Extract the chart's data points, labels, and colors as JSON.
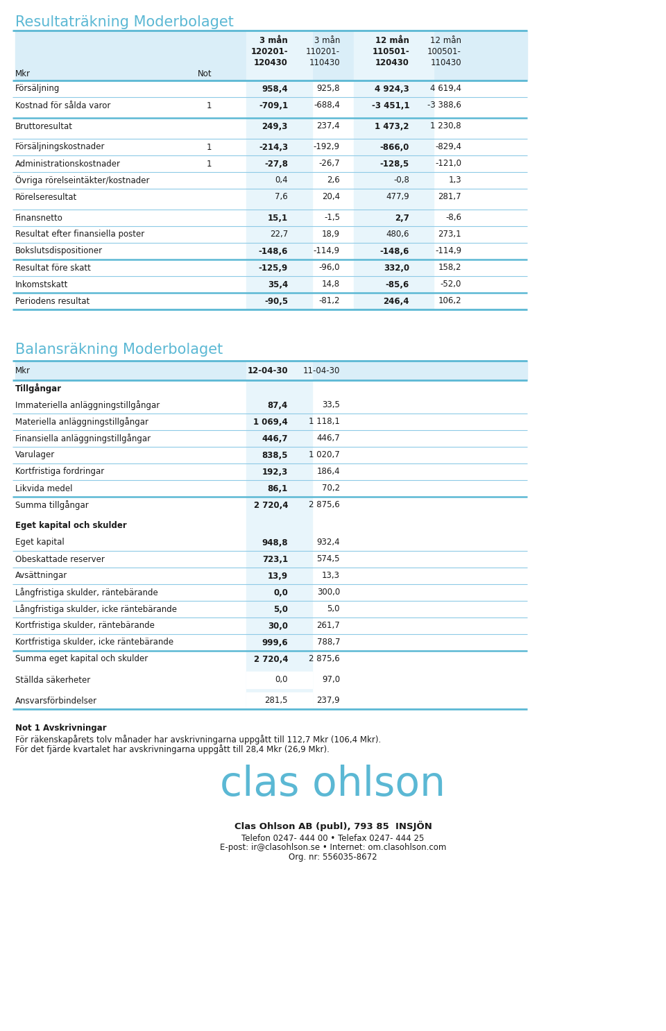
{
  "title1": "Resultaträkning Moderbolaget",
  "title2": "Balansräkning Moderbolaget",
  "title_color": "#5bb8d4",
  "bg_color": "#ffffff",
  "header_bg": "#daeef8",
  "col_bg": "#e8f5fb",
  "line_color": "#8ecae6",
  "thick_line_color": "#5bb8d4",
  "text_color": "#1a1a1a",
  "col1_header": [
    "3 mån",
    "120201-",
    "120430"
  ],
  "col2_header": [
    "3 mån",
    "110201-",
    "110430"
  ],
  "col3_header": [
    "12 mån",
    "110501-",
    "120430"
  ],
  "col4_header": [
    "12 mån",
    "100501-",
    "110430"
  ],
  "mkr_label": "Mkr",
  "not_label": "Not",
  "resultat_rows": [
    {
      "label": "Försäljning",
      "not": "",
      "c1": "958,4",
      "c2": "925,8",
      "c3": "4 924,3",
      "c4": "4 619,4",
      "bold13": true,
      "thick_top": false,
      "space_above": true
    },
    {
      "label": "Kostnad för sålda varor",
      "not": "1",
      "c1": "-709,1",
      "c2": "-688,4",
      "c3": "-3 451,1",
      "c4": "-3 388,6",
      "bold13": true,
      "thick_top": false,
      "space_above": false
    },
    {
      "label": "Bruttoresultat",
      "not": "",
      "c1": "249,3",
      "c2": "237,4",
      "c3": "1 473,2",
      "c4": "1 230,8",
      "bold13": true,
      "thick_top": true,
      "space_above": true
    },
    {
      "label": "Försäljningskostnader",
      "not": "1",
      "c1": "-214,3",
      "c2": "-192,9",
      "c3": "-866,0",
      "c4": "-829,4",
      "bold13": true,
      "thick_top": false,
      "space_above": true
    },
    {
      "label": "Administrationskostnader",
      "not": "1",
      "c1": "-27,8",
      "c2": "-26,7",
      "c3": "-128,5",
      "c4": "-121,0",
      "bold13": true,
      "thick_top": false,
      "space_above": false
    },
    {
      "label": "Övriga rörelseintäkter/kostnader",
      "not": "",
      "c1": "0,4",
      "c2": "2,6",
      "c3": "-0,8",
      "c4": "1,3",
      "bold13": false,
      "thick_top": false,
      "space_above": false
    },
    {
      "label": "Rörelseresultat",
      "not": "",
      "c1": "7,6",
      "c2": "20,4",
      "c3": "477,9",
      "c4": "281,7",
      "bold13": false,
      "thick_top": false,
      "space_above": false
    },
    {
      "label": "Finansnetto",
      "not": "",
      "c1": "15,1",
      "c2": "-1,5",
      "c3": "2,7",
      "c4": "-8,6",
      "bold13": true,
      "thick_top": false,
      "space_above": true
    },
    {
      "label": "Resultat efter finansiella poster",
      "not": "",
      "c1": "22,7",
      "c2": "18,9",
      "c3": "480,6",
      "c4": "273,1",
      "bold13": false,
      "thick_top": false,
      "space_above": false
    },
    {
      "label": "Bokslutsdispositioner",
      "not": "",
      "c1": "-148,6",
      "c2": "-114,9",
      "c3": "-148,6",
      "c4": "-114,9",
      "bold13": true,
      "thick_top": false,
      "space_above": false
    },
    {
      "label": "Resultat före skatt",
      "not": "",
      "c1": "-125,9",
      "c2": "-96,0",
      "c3": "332,0",
      "c4": "158,2",
      "bold13": true,
      "thick_top": true,
      "space_above": false
    },
    {
      "label": "Inkomstskatt",
      "not": "",
      "c1": "35,4",
      "c2": "14,8",
      "c3": "-85,6",
      "c4": "-52,0",
      "bold13": true,
      "thick_top": false,
      "space_above": false
    },
    {
      "label": "Periodens resultat",
      "not": "",
      "c1": "-90,5",
      "c2": "-81,2",
      "c3": "246,4",
      "c4": "106,2",
      "bold13": true,
      "thick_top": true,
      "space_above": false
    }
  ],
  "balans_col1_header": "12-04-30",
  "balans_col2_header": "11-04-30",
  "balans_rows": [
    {
      "label": "Tillgångar",
      "c1": "",
      "c2": "",
      "bold": true,
      "section_header": true,
      "thick_top": false,
      "space_above": false,
      "no_col_bg": false,
      "thin_line_above": false
    },
    {
      "label": "Immateriella anläggningstillgångar",
      "c1": "87,4",
      "c2": "33,5",
      "bold": false,
      "section_header": false,
      "thick_top": false,
      "space_above": false,
      "no_col_bg": false,
      "thin_line_above": false
    },
    {
      "label": "Materiella anläggningstillgångar",
      "c1": "1 069,4",
      "c2": "1 118,1",
      "bold": false,
      "section_header": false,
      "thick_top": false,
      "space_above": false,
      "no_col_bg": false,
      "thin_line_above": true
    },
    {
      "label": "Finansiella anläggningstillgångar",
      "c1": "446,7",
      "c2": "446,7",
      "bold": false,
      "section_header": false,
      "thick_top": false,
      "space_above": false,
      "no_col_bg": false,
      "thin_line_above": true
    },
    {
      "label": "Varulager",
      "c1": "838,5",
      "c2": "1 020,7",
      "bold": false,
      "section_header": false,
      "thick_top": false,
      "space_above": false,
      "no_col_bg": false,
      "thin_line_above": true
    },
    {
      "label": "Kortfristiga fordringar",
      "c1": "192,3",
      "c2": "186,4",
      "bold": false,
      "section_header": false,
      "thick_top": false,
      "space_above": false,
      "no_col_bg": false,
      "thin_line_above": true
    },
    {
      "label": "Likvida medel",
      "c1": "86,1",
      "c2": "70,2",
      "bold": false,
      "section_header": false,
      "thick_top": false,
      "space_above": false,
      "no_col_bg": false,
      "thin_line_above": true
    },
    {
      "label": "Summa tillgångar",
      "c1": "2 720,4",
      "c2": "2 875,6",
      "bold": false,
      "section_header": false,
      "thick_top": true,
      "space_above": false,
      "no_col_bg": false,
      "thin_line_above": false
    },
    {
      "label": "Eget kapital och skulder",
      "c1": "",
      "c2": "",
      "bold": true,
      "section_header": true,
      "thick_top": false,
      "space_above": true,
      "no_col_bg": false,
      "thin_line_above": false
    },
    {
      "label": "Eget kapital",
      "c1": "948,8",
      "c2": "932,4",
      "bold": false,
      "section_header": false,
      "thick_top": false,
      "space_above": false,
      "no_col_bg": false,
      "thin_line_above": false
    },
    {
      "label": "Obeskattade reserver",
      "c1": "723,1",
      "c2": "574,5",
      "bold": false,
      "section_header": false,
      "thick_top": false,
      "space_above": false,
      "no_col_bg": false,
      "thin_line_above": true
    },
    {
      "label": "Avsättningar",
      "c1": "13,9",
      "c2": "13,3",
      "bold": false,
      "section_header": false,
      "thick_top": false,
      "space_above": false,
      "no_col_bg": false,
      "thin_line_above": true
    },
    {
      "label": "Långfristiga skulder, räntebärande",
      "c1": "0,0",
      "c2": "300,0",
      "bold": false,
      "section_header": false,
      "thick_top": false,
      "space_above": false,
      "no_col_bg": false,
      "thin_line_above": true
    },
    {
      "label": "Långfristiga skulder, icke räntebärande",
      "c1": "5,0",
      "c2": "5,0",
      "bold": false,
      "section_header": false,
      "thick_top": false,
      "space_above": false,
      "no_col_bg": false,
      "thin_line_above": true
    },
    {
      "label": "Kortfristiga skulder, räntebärande",
      "c1": "30,0",
      "c2": "261,7",
      "bold": false,
      "section_header": false,
      "thick_top": false,
      "space_above": false,
      "no_col_bg": false,
      "thin_line_above": true
    },
    {
      "label": "Kortfristiga skulder, icke räntebärande",
      "c1": "999,6",
      "c2": "788,7",
      "bold": false,
      "section_header": false,
      "thick_top": false,
      "space_above": false,
      "no_col_bg": false,
      "thin_line_above": true
    },
    {
      "label": "Summa eget kapital och skulder",
      "c1": "2 720,4",
      "c2": "2 875,6",
      "bold": false,
      "section_header": false,
      "thick_top": true,
      "space_above": false,
      "no_col_bg": false,
      "thin_line_above": false
    },
    {
      "label": "Ställda säkerheter",
      "c1": "0,0",
      "c2": "97,0",
      "bold": false,
      "section_header": false,
      "thick_top": false,
      "space_above": true,
      "no_col_bg": true,
      "thin_line_above": false
    },
    {
      "label": "Ansvarsförbindelser",
      "c1": "281,5",
      "c2": "237,9",
      "bold": false,
      "section_header": false,
      "thick_top": false,
      "space_above": true,
      "no_col_bg": true,
      "thin_line_above": false
    }
  ],
  "note_title": "Not 1 Avskrivningar",
  "note_text1": "För räkenskapårets tolv månader har avskrivningarna uppgått till 112,7 Mkr (106,4 Mkr).",
  "note_text2": "För det fjärde kvartalet har avskrivningarna uppgått till 28,4 Mkr (26,9 Mkr).",
  "footer_company": "Clas Ohlson AB (publ), 793 85  INSJÖN",
  "footer_phone": "Telefon 0247- 444 00 • Telefax 0247- 444 25",
  "footer_email": "E-post: ir@clasohlson.se • Internet: om.clasohlson.com",
  "footer_org": "Org. nr: 556035-8672",
  "logo_text": "clas ohlson",
  "logo_color": "#5bb8d4"
}
